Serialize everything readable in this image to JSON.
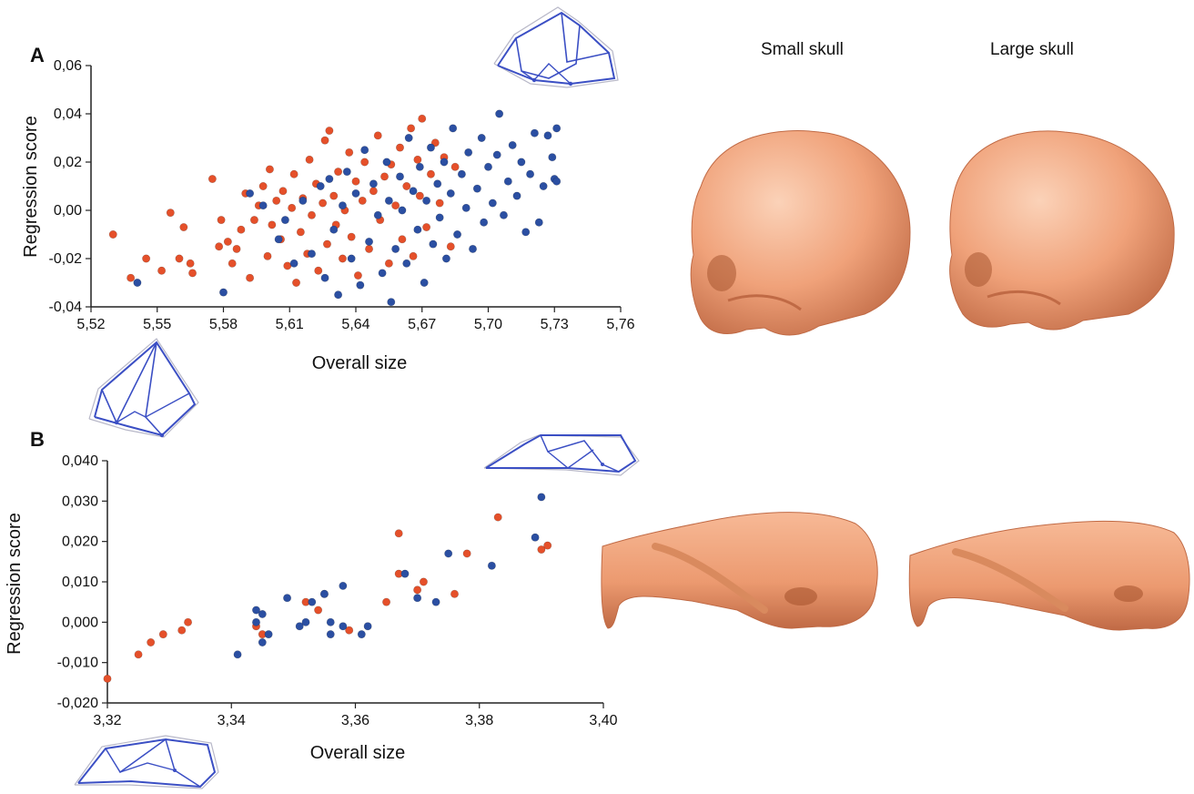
{
  "panels": {
    "a": "A",
    "b": "B"
  },
  "columns": {
    "small": "Small skull",
    "large": "Large skull"
  },
  "colors": {
    "series1": "#2b4fa2",
    "series2": "#e5502a",
    "axis": "#222222",
    "wire": "#3b4fc4",
    "wire_light": "#b8b8c8",
    "skull": "#f0a27a",
    "skull_dark": "#c06a45",
    "skull_light": "#fbd2b8"
  },
  "icons": [
    "wireframe-skull-icon",
    "human-skull-render",
    "mouse-skull-render"
  ],
  "chart_data": [
    {
      "type": "scatter",
      "panel": "A",
      "xlabel": "Overall size",
      "ylabel": "Regression score",
      "xlim": [
        5.52,
        5.76
      ],
      "ylim": [
        -0.04,
        0.06
      ],
      "xticks": [
        "5,52",
        "5,55",
        "5,58",
        "5,61",
        "5,64",
        "5,67",
        "5,70",
        "5,73",
        "5,76"
      ],
      "yticks": [
        "-0,04",
        "-0,02",
        "0,00",
        "0,02",
        "0,04",
        "0,06"
      ],
      "series": [
        {
          "color_key": "series2",
          "points": [
            [
              5.53,
              -0.01
            ],
            [
              5.538,
              -0.028
            ],
            [
              5.545,
              -0.02
            ],
            [
              5.552,
              -0.025
            ],
            [
              5.556,
              -0.001
            ],
            [
              5.56,
              -0.02
            ],
            [
              5.562,
              -0.007
            ],
            [
              5.565,
              -0.022
            ],
            [
              5.566,
              -0.026
            ],
            [
              5.575,
              0.013
            ],
            [
              5.578,
              -0.015
            ],
            [
              5.579,
              -0.004
            ],
            [
              5.582,
              -0.013
            ],
            [
              5.584,
              -0.022
            ],
            [
              5.586,
              -0.016
            ],
            [
              5.588,
              -0.008
            ],
            [
              5.59,
              0.007
            ],
            [
              5.592,
              -0.028
            ],
            [
              5.594,
              -0.004
            ],
            [
              5.596,
              0.002
            ],
            [
              5.598,
              0.01
            ],
            [
              5.6,
              -0.019
            ],
            [
              5.601,
              0.017
            ],
            [
              5.602,
              -0.006
            ],
            [
              5.604,
              0.004
            ],
            [
              5.606,
              -0.012
            ],
            [
              5.607,
              0.008
            ],
            [
              5.609,
              -0.023
            ],
            [
              5.611,
              0.001
            ],
            [
              5.612,
              0.015
            ],
            [
              5.613,
              -0.03
            ],
            [
              5.615,
              -0.009
            ],
            [
              5.616,
              0.005
            ],
            [
              5.618,
              -0.018
            ],
            [
              5.619,
              0.021
            ],
            [
              5.62,
              -0.002
            ],
            [
              5.622,
              0.011
            ],
            [
              5.623,
              -0.025
            ],
            [
              5.625,
              0.003
            ],
            [
              5.626,
              0.029
            ],
            [
              5.627,
              -0.014
            ],
            [
              5.628,
              0.033
            ],
            [
              5.63,
              0.006
            ],
            [
              5.631,
              -0.006
            ],
            [
              5.632,
              0.016
            ],
            [
              5.634,
              -0.02
            ],
            [
              5.635,
              0.0
            ],
            [
              5.637,
              0.024
            ],
            [
              5.638,
              -0.011
            ],
            [
              5.64,
              0.012
            ],
            [
              5.641,
              -0.027
            ],
            [
              5.643,
              0.004
            ],
            [
              5.644,
              0.02
            ],
            [
              5.646,
              -0.016
            ],
            [
              5.648,
              0.008
            ],
            [
              5.65,
              0.031
            ],
            [
              5.651,
              -0.004
            ],
            [
              5.653,
              0.014
            ],
            [
              5.655,
              -0.022
            ],
            [
              5.656,
              0.019
            ],
            [
              5.658,
              0.002
            ],
            [
              5.66,
              0.026
            ],
            [
              5.661,
              -0.012
            ],
            [
              5.663,
              0.01
            ],
            [
              5.665,
              0.034
            ],
            [
              5.666,
              -0.019
            ],
            [
              5.668,
              0.021
            ],
            [
              5.669,
              0.006
            ],
            [
              5.67,
              0.038
            ],
            [
              5.672,
              -0.007
            ],
            [
              5.674,
              0.015
            ],
            [
              5.676,
              0.028
            ],
            [
              5.678,
              0.003
            ],
            [
              5.68,
              0.022
            ],
            [
              5.683,
              -0.015
            ],
            [
              5.685,
              0.018
            ]
          ]
        },
        {
          "color_key": "series1",
          "points": [
            [
              5.541,
              -0.03
            ],
            [
              5.58,
              -0.034
            ],
            [
              5.592,
              0.007
            ],
            [
              5.598,
              0.002
            ],
            [
              5.605,
              -0.012
            ],
            [
              5.608,
              -0.004
            ],
            [
              5.612,
              -0.022
            ],
            [
              5.616,
              0.004
            ],
            [
              5.62,
              -0.018
            ],
            [
              5.624,
              0.01
            ],
            [
              5.626,
              -0.028
            ],
            [
              5.628,
              0.013
            ],
            [
              5.63,
              -0.008
            ],
            [
              5.632,
              -0.035
            ],
            [
              5.634,
              0.002
            ],
            [
              5.636,
              0.016
            ],
            [
              5.638,
              -0.02
            ],
            [
              5.64,
              0.007
            ],
            [
              5.642,
              -0.031
            ],
            [
              5.644,
              0.025
            ],
            [
              5.646,
              -0.013
            ],
            [
              5.648,
              0.011
            ],
            [
              5.65,
              -0.002
            ],
            [
              5.652,
              -0.026
            ],
            [
              5.654,
              0.02
            ],
            [
              5.655,
              0.004
            ],
            [
              5.656,
              -0.038
            ],
            [
              5.658,
              -0.016
            ],
            [
              5.66,
              0.014
            ],
            [
              5.661,
              0.0
            ],
            [
              5.663,
              -0.022
            ],
            [
              5.664,
              0.03
            ],
            [
              5.666,
              0.008
            ],
            [
              5.668,
              -0.008
            ],
            [
              5.669,
              0.018
            ],
            [
              5.671,
              -0.03
            ],
            [
              5.672,
              0.004
            ],
            [
              5.674,
              0.026
            ],
            [
              5.675,
              -0.014
            ],
            [
              5.677,
              0.011
            ],
            [
              5.678,
              -0.003
            ],
            [
              5.68,
              0.02
            ],
            [
              5.681,
              -0.02
            ],
            [
              5.683,
              0.007
            ],
            [
              5.684,
              0.034
            ],
            [
              5.686,
              -0.01
            ],
            [
              5.688,
              0.015
            ],
            [
              5.69,
              0.001
            ],
            [
              5.691,
              0.024
            ],
            [
              5.693,
              -0.016
            ],
            [
              5.695,
              0.009
            ],
            [
              5.697,
              0.03
            ],
            [
              5.698,
              -0.005
            ],
            [
              5.7,
              0.018
            ],
            [
              5.702,
              0.003
            ],
            [
              5.704,
              0.023
            ],
            [
              5.705,
              0.04
            ],
            [
              5.707,
              -0.002
            ],
            [
              5.709,
              0.012
            ],
            [
              5.711,
              0.027
            ],
            [
              5.713,
              0.006
            ],
            [
              5.715,
              0.02
            ],
            [
              5.717,
              -0.009
            ],
            [
              5.719,
              0.015
            ],
            [
              5.721,
              0.032
            ],
            [
              5.723,
              -0.005
            ],
            [
              5.725,
              0.01
            ],
            [
              5.727,
              0.031
            ],
            [
              5.729,
              0.022
            ],
            [
              5.73,
              0.013
            ],
            [
              5.731,
              0.034
            ],
            [
              5.731,
              0.012
            ]
          ]
        }
      ]
    },
    {
      "type": "scatter",
      "panel": "B",
      "xlabel": "Overall size",
      "ylabel": "Regression score",
      "xlim": [
        3.32,
        3.4
      ],
      "ylim": [
        -0.02,
        0.04
      ],
      "xticks": [
        "3,32",
        "3,34",
        "3,36",
        "3,38",
        "3,40"
      ],
      "yticks": [
        "-0,020",
        "-0,010",
        "0,000",
        "0,010",
        "0,020",
        "0,030",
        "0,040"
      ],
      "series": [
        {
          "color_key": "series2",
          "points": [
            [
              3.32,
              -0.014
            ],
            [
              3.325,
              -0.008
            ],
            [
              3.327,
              -0.005
            ],
            [
              3.329,
              -0.003
            ],
            [
              3.332,
              -0.002
            ],
            [
              3.333,
              0.0
            ],
            [
              3.344,
              -0.001
            ],
            [
              3.345,
              -0.003
            ],
            [
              3.352,
              0.005
            ],
            [
              3.354,
              0.003
            ],
            [
              3.359,
              -0.002
            ],
            [
              3.365,
              0.005
            ],
            [
              3.367,
              0.012
            ],
            [
              3.367,
              0.022
            ],
            [
              3.37,
              0.008
            ],
            [
              3.371,
              0.01
            ],
            [
              3.376,
              0.007
            ],
            [
              3.378,
              0.017
            ],
            [
              3.383,
              0.026
            ],
            [
              3.39,
              0.018
            ],
            [
              3.391,
              0.019
            ]
          ]
        },
        {
          "color_key": "series1",
          "points": [
            [
              3.341,
              -0.008
            ],
            [
              3.344,
              0.0
            ],
            [
              3.344,
              0.003
            ],
            [
              3.345,
              0.002
            ],
            [
              3.345,
              -0.005
            ],
            [
              3.346,
              -0.003
            ],
            [
              3.349,
              0.006
            ],
            [
              3.351,
              -0.001
            ],
            [
              3.352,
              0.0
            ],
            [
              3.353,
              0.005
            ],
            [
              3.355,
              0.007
            ],
            [
              3.355,
              0.007
            ],
            [
              3.356,
              0.0
            ],
            [
              3.356,
              -0.003
            ],
            [
              3.358,
              0.009
            ],
            [
              3.358,
              -0.001
            ],
            [
              3.361,
              -0.003
            ],
            [
              3.362,
              -0.001
            ],
            [
              3.368,
              0.012
            ],
            [
              3.37,
              0.006
            ],
            [
              3.373,
              0.005
            ],
            [
              3.375,
              0.017
            ],
            [
              3.382,
              0.014
            ],
            [
              3.389,
              0.021
            ],
            [
              3.39,
              0.031
            ]
          ]
        }
      ]
    }
  ]
}
